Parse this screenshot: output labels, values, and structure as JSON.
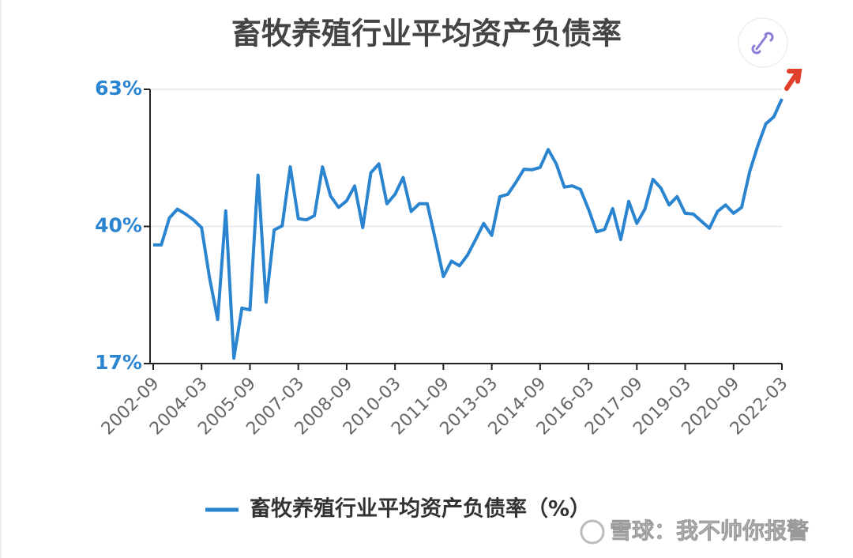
{
  "chart_data": {
    "type": "line",
    "title": "畜牧养殖行业平均资产负债率",
    "categories": [
      "2002-09",
      null,
      null,
      null,
      null,
      null,
      "2004-03",
      null,
      null,
      null,
      null,
      null,
      "2005-09",
      null,
      null,
      null,
      null,
      null,
      "2007-03",
      null,
      null,
      null,
      null,
      null,
      "2008-09",
      null,
      null,
      null,
      null,
      null,
      "2010-03",
      null,
      null,
      null,
      null,
      null,
      "2011-09",
      null,
      null,
      null,
      null,
      null,
      "2013-03",
      null,
      null,
      null,
      null,
      null,
      "2014-09",
      null,
      null,
      null,
      null,
      null,
      "2016-03",
      null,
      null,
      null,
      null,
      null,
      "2017-09",
      null,
      null,
      null,
      null,
      null,
      "2019-03",
      null,
      null,
      null,
      null,
      null,
      "2020-09",
      null,
      null,
      null,
      null,
      null,
      "2022-03"
    ],
    "series": [
      {
        "name": "畜牧养殖行业平均资产负债率（%）",
        "color": "#2b84cf",
        "values": [
          36.9,
          36.9,
          41.4,
          42.9,
          42.1,
          41.1,
          39.8,
          31.3,
          24.4,
          42.6,
          17.9,
          26.3,
          26.0,
          48.6,
          27.3,
          39.4,
          40.1,
          50.0,
          41.3,
          41.1,
          41.8,
          50.0,
          45.1,
          43.2,
          44.3,
          46.8,
          39.8,
          49.0,
          50.5,
          43.8,
          45.4,
          48.2,
          42.5,
          43.8,
          43.8,
          37.8,
          31.6,
          34.2,
          33.4,
          35.2,
          37.8,
          40.5,
          38.5,
          45.0,
          45.4,
          47.4,
          49.6,
          49.5,
          49.9,
          52.9,
          50.5,
          46.6,
          46.8,
          46.2,
          42.9,
          39.1,
          39.5,
          43.0,
          37.8,
          44.2,
          40.5,
          42.9,
          47.9,
          46.4,
          43.6,
          45.0,
          42.2,
          42.1,
          40.9,
          39.7,
          42.5,
          43.6,
          42.2,
          43.2,
          49.2,
          53.5,
          57.2,
          58.4,
          61.4
        ]
      }
    ],
    "ylim": [
      17,
      63
    ],
    "yticks": [
      {
        "value": 17,
        "label": "17%"
      },
      {
        "value": 40,
        "label": "40%"
      },
      {
        "value": 63,
        "label": "63%"
      }
    ],
    "grid": true,
    "watermark": "雪球：我不帅你报警"
  }
}
